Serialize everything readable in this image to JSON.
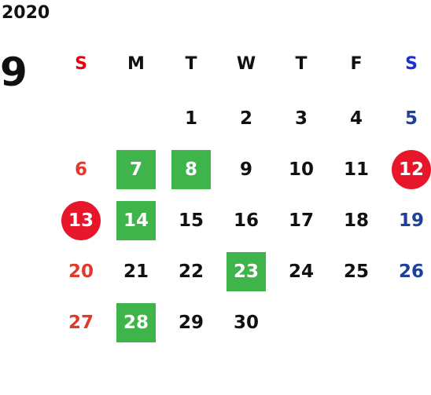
{
  "year": "2020",
  "month": "9",
  "weekdays": [
    "S",
    "M",
    "T",
    "W",
    "T",
    "F",
    "S"
  ],
  "days": {
    "d1": "1",
    "d2": "2",
    "d3": "3",
    "d4": "4",
    "d5": "5",
    "d6": "6",
    "d7": "7",
    "d8": "8",
    "d9": "9",
    "d10": "10",
    "d11": "11",
    "d12": "12",
    "d13": "13",
    "d14": "14",
    "d15": "15",
    "d16": "16",
    "d17": "17",
    "d18": "18",
    "d19": "19",
    "d20": "20",
    "d21": "21",
    "d22": "22",
    "d23": "23",
    "d24": "24",
    "d25": "25",
    "d26": "26",
    "d27": "27",
    "d28": "28",
    "d29": "29",
    "d30": "30"
  },
  "colors": {
    "sunday": "#e03a2f",
    "saturday": "#1f3f9a",
    "highlight_green": "#3fb44a",
    "holiday_red": "#e8162b"
  }
}
